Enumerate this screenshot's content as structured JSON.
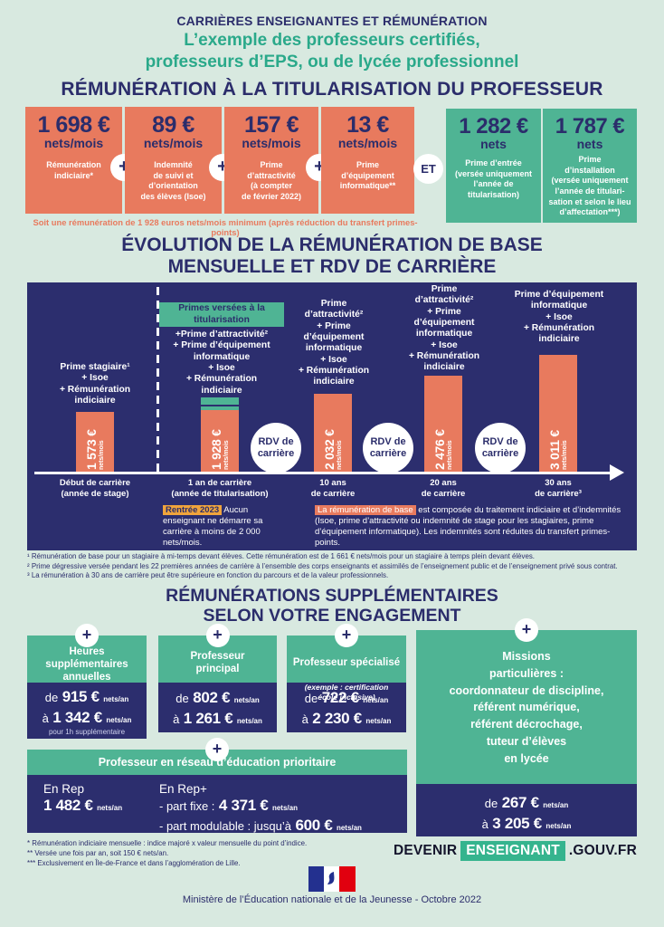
{
  "colors": {
    "navy": "#2c2e6e",
    "orange": "#e87a5e",
    "green": "#4fb494",
    "background": "#d8e9e0",
    "yellow": "#f0a43c",
    "flag_blue": "#23308f",
    "flag_red": "#e1000f"
  },
  "symbols": {
    "plus": "+",
    "et": "ET"
  },
  "header": {
    "eyebrow": "CARRIÈRES ENSEIGNANTES ET RÉMUNÉRATION",
    "subtitle_line1": "L’exemple des professeurs certifiés,",
    "subtitle_line2": "professeurs d’EPS, ou de lycée professionnel"
  },
  "titularisation": {
    "title": "RÉMUNÉRATION À LA TITULARISATION DU PROFESSEUR",
    "boxes": [
      {
        "amount": "1 698 €",
        "unit": "nets/mois",
        "label": "Rémunération\nindiciaire*"
      },
      {
        "amount": "89 €",
        "unit": "nets/mois",
        "label": "Indemnité\nde suivi et\nd’orientation\ndes élèves (Isoe)"
      },
      {
        "amount": "157 €",
        "unit": "nets/mois",
        "label": "Prime\nd’attractivité\n(à compter\nde février 2022)"
      },
      {
        "amount": "13 €",
        "unit": "nets/mois",
        "label": "Prime\nd’équipement\ninformatique**"
      }
    ],
    "bonus_boxes": [
      {
        "amount": "1 282 €",
        "unit": "nets",
        "label": "Prime d’entrée\n(versée uniquement\nl’année de\ntitularisation)"
      },
      {
        "amount": "1 787 €",
        "unit": "nets",
        "label": "Prime\nd’installation\n(versée uniquement\nl’année de titulari-\nsation et selon le lieu\nd’affectation***)"
      }
    ],
    "note": "Soit une rémunération de 1 928 euros nets/mois minimum (après réduction du transfert primes-points)"
  },
  "evolution": {
    "title_line1": "ÉVOLUTION DE LA RÉMUNÉRATION DE BASE",
    "title_line2": "MENSUELLE ET RDV DE CARRIÈRE",
    "rdv_label": "RDV de carrière",
    "columns": [
      {
        "badge": "",
        "label": "Prime stagiaire¹\n+ Isoe\n+ Rémunération\nindiciaire",
        "amount": "1 573 €",
        "unit": "nets/mois",
        "axis": "Début de carrière\n(année de stage)"
      },
      {
        "badge": "Primes versées à la titularisation",
        "label": "+Prime d’attractivité²\n+ Prime d’équipement\ninformatique\n+ Isoe\n+ Rémunération\nindiciaire",
        "amount": "1 928 €",
        "unit": "nets/mois",
        "axis": "1 an de carrière\n(année de titularisation)"
      },
      {
        "badge": "",
        "label": "Prime\nd’attractivité²\n+ Prime\nd’équipement\ninformatique\n+ Isoe\n+ Rémunération\nindiciaire",
        "amount": "2 032 €",
        "unit": "nets/mois",
        "axis": "10 ans\nde carrière"
      },
      {
        "badge": "",
        "label": "Prime\nd’attractivité²\n+ Prime\nd’équipement\ninformatique\n+ Isoe\n+ Rémunération\nindiciaire",
        "amount": "2 476 €",
        "unit": "nets/mois",
        "axis": "20 ans\nde carrière"
      },
      {
        "badge": "",
        "label": "Prime d’équipement\ninformatique\n+ Isoe\n+ Rémunération\nindiciaire",
        "amount": "3 011 €",
        "unit": "nets/mois",
        "axis": "30 ans\nde carrière³"
      }
    ],
    "note_left": {
      "highlight": "Rentrée 2023",
      "text": " Aucun enseignant ne démarre sa carrière à moins de 2 000 nets/mois."
    },
    "note_right": {
      "highlight": "La rémunération de base",
      "text": " est composée du traitement indiciaire et d’indemnités (Isoe, prime d’attractivité ou indemnité de stage pour les stagiaires, prime d’équipement informatique). Les indemnités sont réduites du transfert primes-points."
    },
    "footnotes": [
      "¹ Rémunération de base pour un stagiaire à mi-temps devant élèves. Cette rémunération est de 1 661 € nets/mois pour un stagiaire à temps plein devant élèves.",
      "² Prime dégressive versée pendant les 22 premières années de carrière à l’ensemble des corps enseignants et assimilés de l’enseignement public et de l’enseignement privé sous contrat.",
      "³ La rémunération à 30 ans de carrière peut être supérieure en fonction du parcours et de la valeur professionnels."
    ]
  },
  "chart_data": {
    "type": "bar",
    "title": "Évolution de la rémunération de base mensuelle et RDV de carrière",
    "categories": [
      "Début de carrière (année de stage)",
      "1 an de carrière (année de titularisation)",
      "10 ans de carrière",
      "20 ans de carrière",
      "30 ans de carrière"
    ],
    "values": [
      1573,
      1928,
      2032,
      2476,
      3011
    ],
    "unit": "€ nets/mois",
    "ylim": [
      0,
      3011
    ],
    "bar_color": "#e87a5e",
    "annotations": [
      "RDV de carrière markers between 1 an/10 ans, 10 ans/20 ans and 20 ans/30 ans"
    ],
    "grid": false,
    "legend": false
  },
  "supplements": {
    "title_line1": "RÉMUNÉRATIONS SUPPLÉMENTAIRES",
    "title_line2": "SELON VOTRE ENGAGEMENT",
    "cards": [
      {
        "title": "Heures\nsupplémentaires\nannuelles",
        "subtitle": "",
        "from_prefix": "de",
        "from_amount": "915 €",
        "from_unit": "nets/an",
        "to_prefix": "à",
        "to_amount": "1 342 €",
        "to_unit": "nets/an",
        "footnote": "pour 1h supplémentaire"
      },
      {
        "title": "Professeur\nprincipal",
        "subtitle": "",
        "from_prefix": "de",
        "from_amount": "802 €",
        "from_unit": "nets/an",
        "to_prefix": "à",
        "to_amount": "1 261 €",
        "to_unit": "nets/an",
        "footnote": ""
      },
      {
        "title": "Professeur spécialisé",
        "subtitle": "(exemple : certification\nécole inclusive)",
        "from_prefix": "de",
        "from_amount": "722 €",
        "from_unit": "nets/an",
        "to_prefix": "à",
        "to_amount": "2 230 €",
        "to_unit": "nets/an",
        "footnote": ""
      }
    ],
    "missions": {
      "title": "Missions\nparticulières :\ncoordonnateur de discipline,\nréférent numérique,\nréférent décrochage,\ntuteur d’élèves\nen lycée",
      "from_prefix": "de",
      "from_amount": "267 €",
      "from_unit": "nets/an",
      "to_prefix": "à",
      "to_amount": "3 205 €",
      "to_unit": "nets/an"
    },
    "rep": {
      "title": "Professeur en réseau d’éducation prioritaire",
      "rep_label": "En Rep",
      "rep_amount": "1 482 €",
      "rep_unit": "nets/an",
      "repplus_label": "En Rep+",
      "fixe_prefix": "- part fixe :",
      "fixe_amount": "4 371 €",
      "fixe_unit": "nets/an",
      "mod_prefix": "- part modulable : jusqu’à",
      "mod_amount": "600 €",
      "mod_unit": "nets/an"
    }
  },
  "footer": {
    "notes": [
      "* Rémunération indiciaire mensuelle : indice majoré x valeur mensuelle du point d’indice.",
      "** Versée une fois par an, soit 150 € nets/an.",
      "*** Exclusivement en Île-de-France et dans l’agglomération de Lille."
    ],
    "logo_devenir": "DEVENIR",
    "logo_enseignant": "ENSEIGNANT",
    "logo_gouv": ".GOUV.FR",
    "ministry": "Ministère de l’Éducation nationale et de la Jeunesse - Octobre 2022"
  }
}
